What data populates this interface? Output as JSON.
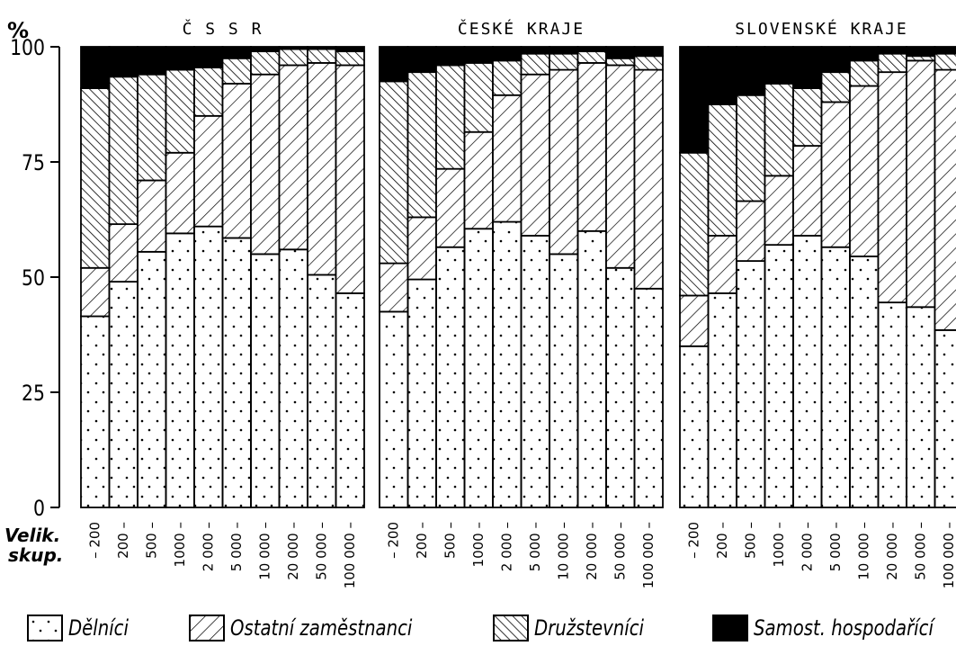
{
  "y_unit_label": "%",
  "x_group_label": [
    "Velik.",
    "skup."
  ],
  "chart_data": {
    "type": "bar",
    "stacked": true,
    "ylim": [
      0,
      100
    ],
    "yticks": [
      0,
      25,
      50,
      75,
      100
    ],
    "categories": [
      "– 200",
      "200 –",
      "500 –",
      "1000 –",
      "2 000 –",
      "5 000 –",
      "10 000 –",
      "20 000 –",
      "50 000 –",
      "100 000 –"
    ],
    "legend": [
      {
        "key": "delnici",
        "label": "Dělníci",
        "pattern": "dots"
      },
      {
        "key": "ostatni",
        "label": "Ostatní zaměstnanci",
        "pattern": "diag-forward"
      },
      {
        "key": "druzstevnici",
        "label": "Družstevníci",
        "pattern": "diag-back"
      },
      {
        "key": "samost",
        "label": "Samost. hospodařící",
        "pattern": "solid"
      }
    ],
    "panels": [
      {
        "title": "Č S S R",
        "series": [
          {
            "key": "delnici",
            "values": [
              41.5,
              49,
              55.5,
              59.5,
              61,
              58.5,
              55,
              56,
              50.5,
              46.5
            ]
          },
          {
            "key": "ostatni",
            "values": [
              10.5,
              12.5,
              15.5,
              17.5,
              24,
              33.5,
              39,
              40,
              46,
              49.5
            ]
          },
          {
            "key": "druzstevnici",
            "values": [
              39,
              32,
              23,
              18,
              10.5,
              5.5,
              5,
              3.5,
              3,
              3
            ]
          },
          {
            "key": "samost",
            "values": [
              9,
              6.5,
              6,
              5,
              4.5,
              2.5,
              1,
              0.5,
              0.5,
              1
            ]
          }
        ]
      },
      {
        "title": "ČESKÉ KRAJE",
        "series": [
          {
            "key": "delnici",
            "values": [
              42.5,
              49.5,
              56.5,
              60.5,
              62,
              59,
              55,
              60,
              52,
              47.5
            ]
          },
          {
            "key": "ostatni",
            "values": [
              10.5,
              13.5,
              17,
              21,
              27.5,
              35,
              40,
              36.5,
              44,
              47.5
            ]
          },
          {
            "key": "druzstevnici",
            "values": [
              39.5,
              31.5,
              22.5,
              15,
              7.5,
              4.5,
              3.5,
              2.5,
              1.5,
              3
            ]
          },
          {
            "key": "samost",
            "values": [
              7.5,
              5.5,
              4,
              3.5,
              3,
              1.5,
              1.5,
              1,
              2.5,
              2
            ]
          }
        ]
      },
      {
        "title": "SLOVENSKÉ KRAJE",
        "series": [
          {
            "key": "delnici",
            "values": [
              35,
              46.5,
              53.5,
              57,
              59,
              56.5,
              54.5,
              44.5,
              43.5,
              38.5
            ]
          },
          {
            "key": "ostatni",
            "values": [
              11,
              12.5,
              13,
              15,
              19.5,
              31.5,
              37,
              50,
              53.5,
              56.5
            ]
          },
          {
            "key": "druzstevnici",
            "values": [
              31,
              28.5,
              23,
              20,
              12.5,
              6.5,
              5.5,
              4,
              1,
              3.5
            ]
          },
          {
            "key": "samost",
            "values": [
              23,
              12.5,
              10.5,
              8,
              9,
              5.5,
              3,
              1.5,
              2,
              1.5
            ]
          }
        ]
      }
    ]
  }
}
